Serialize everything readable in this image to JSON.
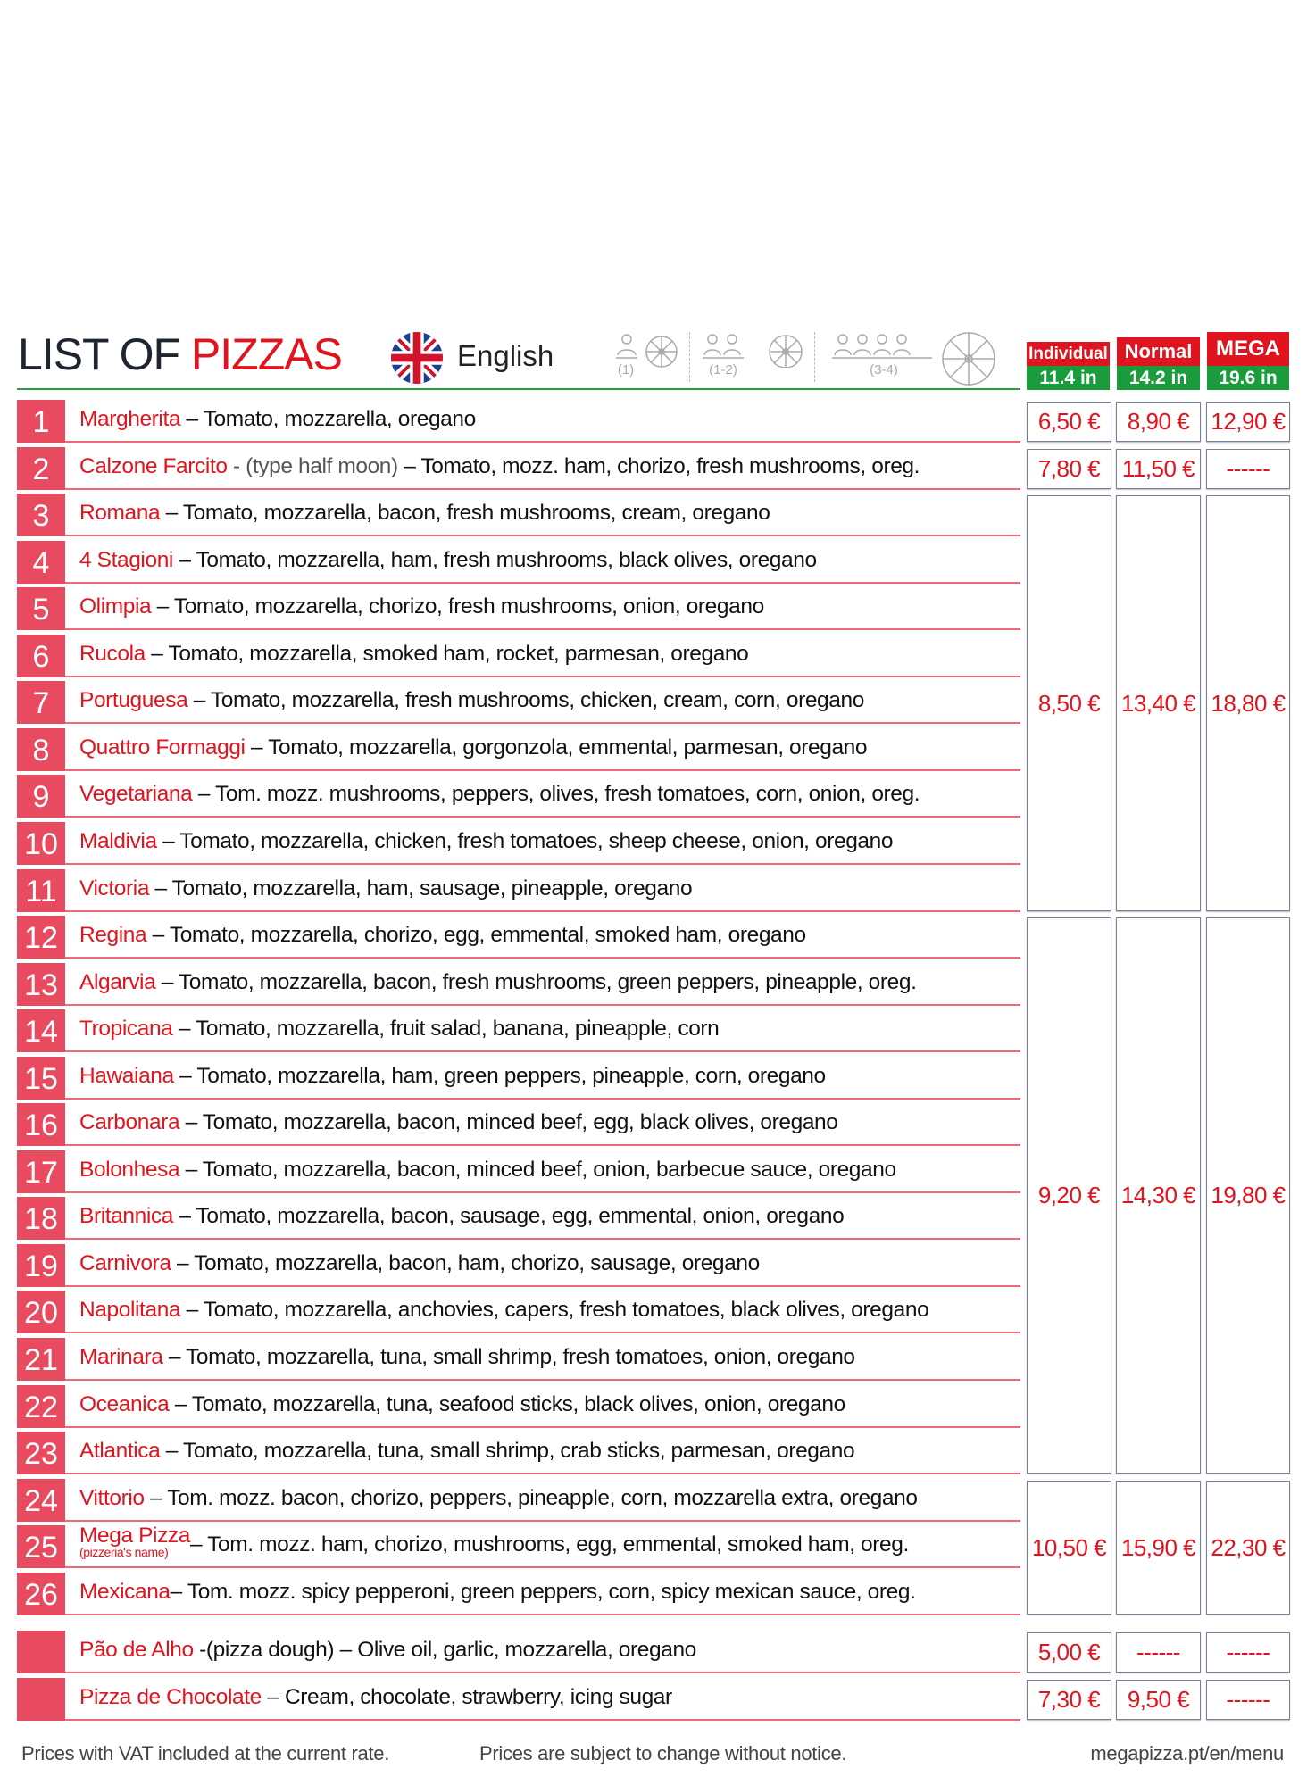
{
  "header": {
    "title_part1": "LIST OF ",
    "title_part2": "PIZZAS",
    "language": "English",
    "people_labels": [
      "(1)",
      "(1-2)",
      "(3-4)"
    ],
    "sizes": [
      {
        "name": "Individual",
        "size": "11.4 in"
      },
      {
        "name": "Normal",
        "size": "14.2 in"
      },
      {
        "name": "MEGA",
        "size": "19.6 in"
      }
    ]
  },
  "colors": {
    "accent_red": "#e0141e",
    "badge_red": "#e84a5f",
    "green": "#1a9c3d"
  },
  "pizzas": [
    {
      "num": "1",
      "name": "Margherita",
      "desc": " – Tomato, mozzarella, oregano"
    },
    {
      "num": "2",
      "name": "Calzone Farcito",
      "note": " - (type half moon)",
      "desc": " – Tomato, mozz. ham, chorizo, fresh mushrooms, oreg."
    },
    {
      "num": "3",
      "name": "Romana",
      "desc": " – Tomato, mozzarella, bacon, fresh mushrooms, cream, oregano"
    },
    {
      "num": "4",
      "name": "4 Stagioni",
      "desc": " – Tomato, mozzarella, ham, fresh mushrooms, black olives, oregano"
    },
    {
      "num": "5",
      "name": "Olimpia",
      "desc": " – Tomato, mozzarella, chorizo, fresh mushrooms, onion, oregano"
    },
    {
      "num": "6",
      "name": "Rucola",
      "desc": " – Tomato, mozzarella, smoked ham, rocket, parmesan, oregano"
    },
    {
      "num": "7",
      "name": "Portuguesa",
      "desc": " – Tomato, mozzarella, fresh mushrooms, chicken, cream, corn, oregano"
    },
    {
      "num": "8",
      "name": "Quattro Formaggi",
      "desc": " – Tomato, mozzarella, gorgonzola, emmental, parmesan, oregano"
    },
    {
      "num": "9",
      "name": "Vegetariana",
      "desc": " – Tom. mozz. mushrooms, peppers, olives, fresh tomatoes, corn, onion, oreg."
    },
    {
      "num": "10",
      "name": "Maldivia",
      "desc": " – Tomato, mozzarella, chicken, fresh tomatoes, sheep cheese, onion, oregano"
    },
    {
      "num": "11",
      "name": "Victoria",
      "desc": " – Tomato, mozzarella, ham, sausage, pineapple, oregano"
    },
    {
      "num": "12",
      "name": "Regina",
      "desc": " – Tomato, mozzarella, chorizo, egg, emmental, smoked ham, oregano"
    },
    {
      "num": "13",
      "name": "Algarvia",
      "desc": " – Tomato, mozzarella, bacon, fresh mushrooms, green peppers, pineapple, oreg."
    },
    {
      "num": "14",
      "name": "Tropicana",
      "desc": " – Tomato, mozzarella, fruit salad, banana, pineapple, corn"
    },
    {
      "num": "15",
      "name": "Hawaiana",
      "desc": " – Tomato, mozzarella, ham, green peppers, pineapple, corn, oregano"
    },
    {
      "num": "16",
      "name": "Carbonara",
      "desc": " – Tomato, mozzarella, bacon, minced beef, egg,  black olives, oregano"
    },
    {
      "num": "17",
      "name": "Bolonhesa",
      "desc": " – Tomato, mozzarella, bacon, minced beef, onion, barbecue sauce, oregano"
    },
    {
      "num": "18",
      "name": "Britannica",
      "desc": "  – Tomato, mozzarella, bacon, sausage, egg, emmental, onion, oregano"
    },
    {
      "num": "19",
      "name": "Carnivora",
      "desc": "  – Tomato, mozzarella, bacon, ham, chorizo, sausage, oregano"
    },
    {
      "num": "20",
      "name": "Napolitana",
      "desc": "  – Tomato, mozzarella, anchovies, capers, fresh tomatoes, black olives, oregano"
    },
    {
      "num": "21",
      "name": "Marinara",
      "desc": "  – Tomato, mozzarella, tuna, small shrimp, fresh tomatoes, onion, oregano"
    },
    {
      "num": "22",
      "name": "Oceanica",
      "desc": "  – Tomato, mozzarella, tuna, seafood sticks, black olives, onion, oregano"
    },
    {
      "num": "23",
      "name": "Atlantica",
      "desc": "  – Tomato, mozzarella, tuna, small shrimp, crab sticks, parmesan, oregano"
    },
    {
      "num": "24",
      "name": "Vittorio",
      "desc": " – Tom. mozz. bacon, chorizo, peppers, pineapple, corn, mozzarella extra, oregano"
    },
    {
      "num": "25",
      "name": "Mega Pizza",
      "subname": "(pizzeria's name)",
      "desc": "– Tom. mozz. ham, chorizo, mushrooms, egg, emmental, smoked ham, oreg."
    },
    {
      "num": "26",
      "name": "Mexicana",
      "desc": "– Tom. mozz. spicy pepperoni, green peppers, corn, spicy mexican sauce, oreg."
    }
  ],
  "price_groups": [
    {
      "rows": [
        1,
        1
      ],
      "prices": [
        "6,50 €",
        "8,90 €",
        "12,90 €"
      ]
    },
    {
      "rows": [
        2,
        2
      ],
      "prices": [
        "7,80 €",
        "11,50 €",
        "------"
      ]
    },
    {
      "rows": [
        3,
        11
      ],
      "prices": [
        "8,50 €",
        "13,40 €",
        "18,80 €"
      ]
    },
    {
      "rows": [
        12,
        23
      ],
      "prices": [
        "9,20 €",
        "14,30 €",
        "19,80 €"
      ]
    },
    {
      "rows": [
        24,
        26
      ],
      "prices": [
        "10,50 €",
        "15,90 €",
        "22,30 €"
      ]
    }
  ],
  "extras": [
    {
      "name": "Pão de Alho",
      "desc": " -(pizza dough) – Olive oil, garlic, mozzarella, oregano",
      "prices": [
        "5,00 €",
        "------",
        "------"
      ]
    },
    {
      "name": "Pizza de Chocolate",
      "desc": " – Cream, chocolate, strawberry, icing sugar",
      "prices": [
        "7,30 €",
        "9,50 €",
        "------"
      ]
    }
  ],
  "footer": {
    "vat": "Prices with VAT included at the current rate.",
    "notice": "Prices are subject to change without notice.",
    "url": "megapizza.pt/en/menu"
  }
}
